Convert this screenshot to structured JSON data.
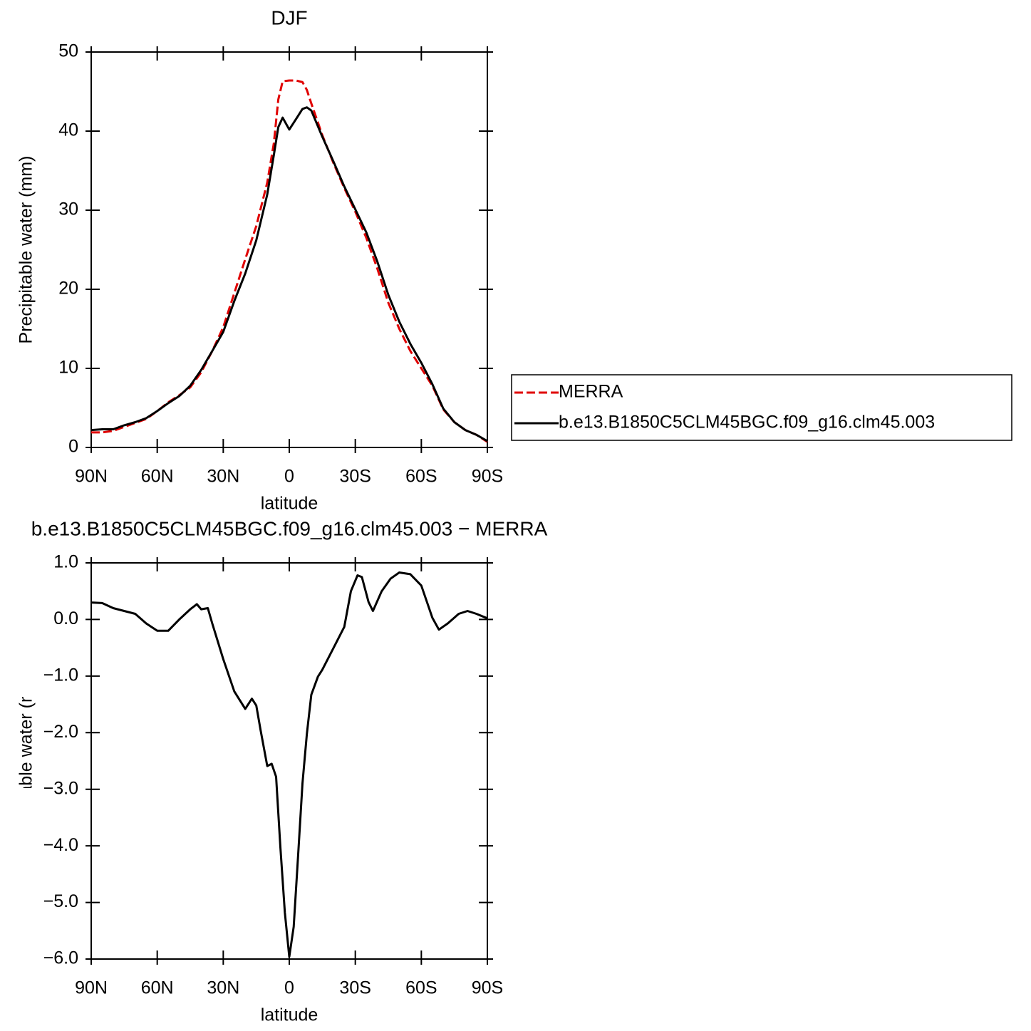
{
  "chart_data": [
    {
      "type": "line",
      "title": "DJF",
      "xlabel": "latitude",
      "ylabel": "Precipitable water (mm)",
      "x": [
        90,
        85,
        80,
        75,
        70,
        65,
        60,
        55,
        50,
        45,
        40,
        35,
        30,
        25,
        20,
        15,
        10,
        7,
        5,
        3,
        0,
        -3,
        -6,
        -8,
        -10,
        -15,
        -20,
        -25,
        -30,
        -35,
        -40,
        -45,
        -50,
        -55,
        -60,
        -65,
        -70,
        -75,
        -80,
        -85,
        -90
      ],
      "series": [
        {
          "name": "MERRA",
          "color": "#e00000",
          "linestyle": "dashed",
          "values": [
            1.9,
            1.9,
            2.1,
            2.6,
            3.1,
            3.6,
            4.6,
            5.7,
            6.6,
            7.6,
            9.5,
            12.2,
            15.2,
            19.5,
            23.8,
            28,
            33.5,
            38.5,
            44,
            46.3,
            46.4,
            46.4,
            46.2,
            45.2,
            43.5,
            39.5,
            36,
            32.8,
            29.8,
            26.5,
            22.6,
            18.3,
            15,
            12.2,
            10,
            7.8,
            4.8,
            3.2,
            2.2,
            1.6,
            0.7
          ]
        },
        {
          "name": "b.e13.B1850C5CLM45BGC.f09_g16.clm45.003",
          "color": "#000000",
          "linestyle": "solid",
          "values": [
            2.2,
            2.3,
            2.3,
            2.8,
            3.2,
            3.7,
            4.6,
            5.6,
            6.5,
            7.8,
            9.8,
            12.2,
            14.6,
            18.5,
            22,
            26.2,
            32,
            37,
            40.5,
            41.7,
            40.2,
            41.5,
            42.8,
            43,
            42.6,
            39.3,
            36.2,
            33,
            30.1,
            27.2,
            23.5,
            19.3,
            15.9,
            13.1,
            10.7,
            8,
            4.9,
            3.2,
            2.2,
            1.6,
            0.8
          ]
        }
      ],
      "xlim": [
        90,
        -90
      ],
      "xticks": [
        {
          "value": 90,
          "label": "90N"
        },
        {
          "value": 60,
          "label": "60N"
        },
        {
          "value": 30,
          "label": "30N"
        },
        0,
        {
          "value": -30,
          "label": "30S"
        },
        {
          "value": -60,
          "label": "60S"
        },
        {
          "value": -90,
          "label": "90S"
        }
      ],
      "ylim": [
        0,
        50
      ],
      "yticks": [
        0,
        10,
        20,
        30,
        40,
        50
      ],
      "legend": "right"
    },
    {
      "type": "line",
      "title": "b.e13.B1850C5CLM45BGC.f09_g16.clm45.003 − MERRA",
      "xlabel": "latitude",
      "ylabel": "Precipitable water (mm)",
      "x": [
        90,
        85,
        80,
        75,
        70,
        65,
        60,
        55,
        50,
        45,
        42,
        40,
        37,
        35,
        30,
        25,
        20,
        17,
        15,
        13,
        10,
        8,
        6,
        4,
        2,
        0,
        -2,
        -4,
        -6,
        -8,
        -10,
        -13,
        -15,
        -20,
        -25,
        -28,
        -31,
        -33,
        -36,
        -38,
        -42,
        -46,
        -50,
        -55,
        -60,
        -65,
        -68,
        -72,
        -77,
        -81,
        -85,
        -90
      ],
      "series": [
        {
          "color": "#000000",
          "linestyle": "solid",
          "values": [
            0.3,
            0.29,
            0.2,
            0.15,
            0.1,
            -0.07,
            -0.2,
            -0.2,
            0,
            0.18,
            0.27,
            0.18,
            0.2,
            -0.07,
            -0.7,
            -1.27,
            -1.58,
            -1.4,
            -1.52,
            -1.96,
            -2.59,
            -2.55,
            -2.78,
            -4.04,
            -5.18,
            -5.96,
            -5.43,
            -4.17,
            -2.9,
            -2.02,
            -1.33,
            -1.01,
            -0.89,
            -0.51,
            -0.13,
            0.5,
            0.78,
            0.75,
            0.31,
            0.15,
            0.5,
            0.72,
            0.83,
            0.8,
            0.6,
            0.03,
            -0.18,
            -0.07,
            0.1,
            0.15,
            0.1,
            0.02
          ]
        }
      ],
      "xlim": [
        90,
        -90
      ],
      "xticks": [
        {
          "value": 90,
          "label": "90N"
        },
        {
          "value": 60,
          "label": "60N"
        },
        {
          "value": 30,
          "label": "30N"
        },
        0,
        {
          "value": -30,
          "label": "30S"
        },
        {
          "value": -60,
          "label": "60S"
        },
        {
          "value": -90,
          "label": "90S"
        }
      ],
      "ylim": [
        -6,
        1
      ],
      "yticks": [
        {
          "value": -6,
          "label": "−6.0"
        },
        {
          "value": -5,
          "label": "−5.0"
        },
        {
          "value": -4,
          "label": "−4.0"
        },
        {
          "value": -3,
          "label": "−3.0"
        },
        {
          "value": -2,
          "label": "−2.0"
        },
        {
          "value": -1,
          "label": "−1.0"
        },
        {
          "value": 0,
          "label": "0.0"
        },
        {
          "value": 1,
          "label": "1.0"
        }
      ]
    }
  ]
}
